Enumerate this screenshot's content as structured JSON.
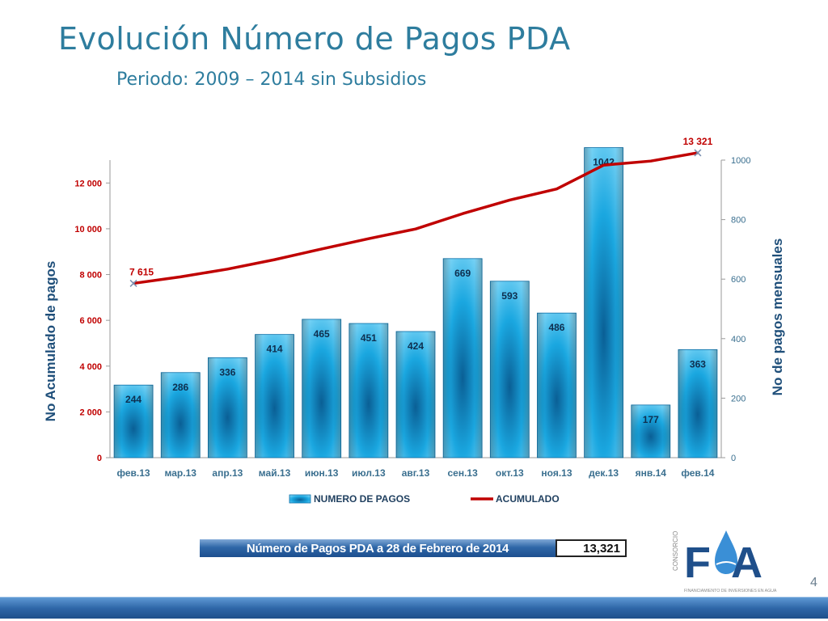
{
  "page": {
    "title": "Evolución Número de Pagos PDA",
    "subtitle": "Periodo: 2009 – 2014 sin Subsidios",
    "page_number": "4"
  },
  "summary": {
    "label": "Número de Pagos PDA a 28 de Febrero de 2014",
    "value": "13,321"
  },
  "logo": {
    "text": "FA",
    "side_text": "CONSORCIO",
    "tagline": "FINANCIAMIENTO DE INVERSIONES EN AGUA"
  },
  "colors": {
    "bar": "#1aa7e0",
    "bar_dark": "#0a5f95",
    "line": "#c00000",
    "right_axis": "#3a6f8f",
    "left_axis": "#c00000",
    "footer": "#2f67a8"
  },
  "chart_data": {
    "type": "bar",
    "categories": [
      "фев.13",
      "мар.13",
      "апр.13",
      "май.13",
      "июн.13",
      "июл.13",
      "авг.13",
      "сен.13",
      "окт.13",
      "ноя.13",
      "дек.13",
      "янв.14",
      "фев.14"
    ],
    "series": [
      {
        "name": "NUMERO DE PAGOS",
        "type": "bar",
        "axis": "right",
        "values": [
          244,
          286,
          336,
          414,
          465,
          451,
          424,
          669,
          593,
          486,
          1042,
          177,
          363
        ]
      },
      {
        "name": "ACUMULADO",
        "type": "line",
        "axis": "left",
        "values": [
          7615,
          7901,
          8237,
          8651,
          9116,
          9567,
          9991,
          10660,
          11253,
          11739,
          12781,
          12958,
          13321
        ]
      }
    ],
    "line_labels": [
      "7 615",
      "13 321"
    ],
    "ylabel_left": "No Acumulado de pagos",
    "ylabel_right": "No de pagos mensuales",
    "ylim_left": [
      0,
      13000
    ],
    "yticks_left": [
      0,
      2000,
      4000,
      6000,
      8000,
      10000,
      12000
    ],
    "yticks_left_labels": [
      "0",
      "2 000",
      "4 000",
      "6 000",
      "8 000",
      "10 000",
      "12 000"
    ],
    "ylim_right": [
      0,
      1000
    ],
    "yticks_right": [
      0,
      200,
      400,
      600,
      800,
      1000
    ],
    "legend": "bottom",
    "grid": false
  }
}
